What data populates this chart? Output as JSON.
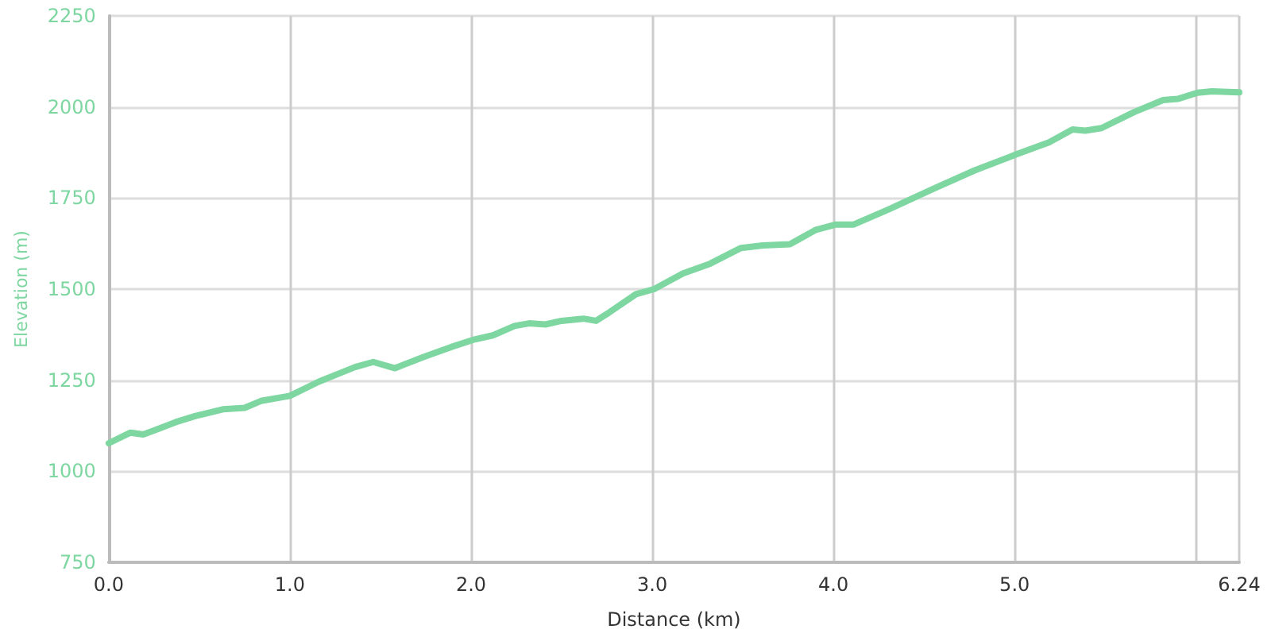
{
  "chart_data": {
    "type": "line",
    "xlabel": "Distance (km)",
    "ylabel": "Elevation (m)",
    "x": [
      0,
      0.12,
      0.19,
      0.25,
      0.37,
      0.48,
      0.63,
      0.75,
      0.84,
      1.0,
      1.16,
      1.27,
      1.36,
      1.46,
      1.58,
      1.74,
      1.89,
      2.02,
      2.12,
      2.24,
      2.32,
      2.41,
      2.5,
      2.62,
      2.69,
      2.76,
      2.91,
      3.01,
      3.17,
      3.32,
      3.49,
      3.61,
      3.76,
      3.9,
      4.01,
      4.11,
      4.31,
      4.55,
      4.78,
      5.01,
      5.19,
      5.32,
      5.39,
      5.48,
      5.66,
      5.82,
      5.9,
      6.01,
      6.09,
      6.24
    ],
    "series": [
      {
        "color": "#7ed6a0",
        "values": [
          1077,
          1106,
          1101,
          1112,
          1135,
          1152,
          1170,
          1174,
          1193,
          1207,
          1246,
          1268,
          1286,
          1300,
          1283,
          1314,
          1341,
          1362,
          1373,
          1399,
          1406,
          1403,
          1413,
          1419,
          1413,
          1435,
          1486,
          1500,
          1543,
          1570,
          1613,
          1620,
          1623,
          1662,
          1677,
          1677,
          1720,
          1775,
          1826,
          1870,
          1903,
          1938,
          1935,
          1942,
          1986,
          2019,
          2022,
          2039,
          2043,
          2040
        ]
      }
    ],
    "xlim": [
      0,
      6.24
    ],
    "xticks": [
      {
        "value": 0,
        "label": "0.0"
      },
      {
        "value": 1,
        "label": "1.0"
      },
      {
        "value": 2,
        "label": "2.0"
      },
      {
        "value": 3,
        "label": "3.0"
      },
      {
        "value": 4,
        "label": "4.0"
      },
      {
        "value": 5,
        "label": "5.0"
      },
      {
        "value": 6,
        "label": null
      },
      6.24
    ],
    "ylim": [
      750,
      2250
    ],
    "yticks": [
      750,
      1000,
      1250,
      1500,
      1750,
      2000,
      2250
    ],
    "grid": true,
    "marker": "none",
    "line_style": "solid"
  }
}
